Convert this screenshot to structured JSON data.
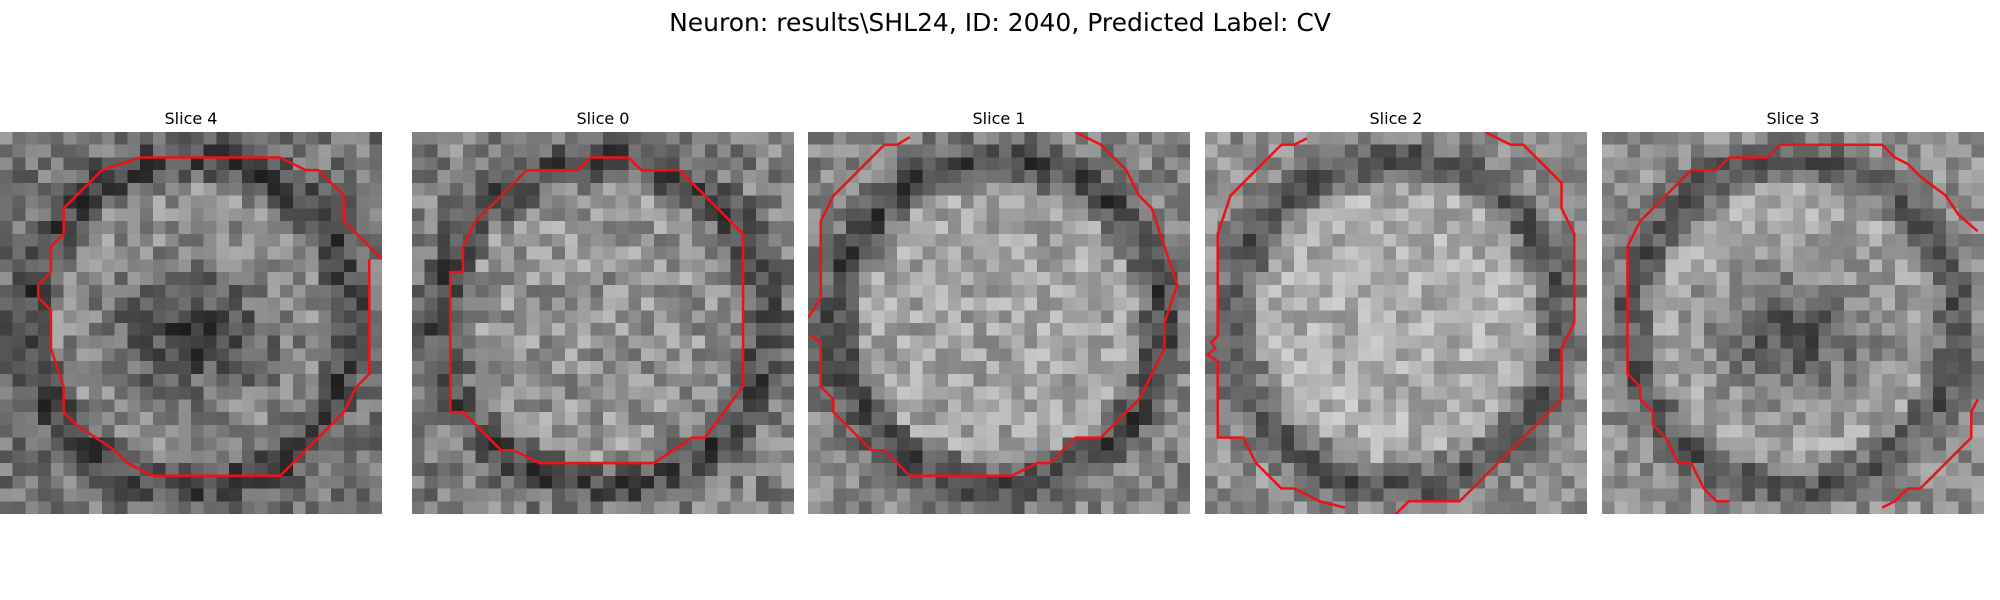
{
  "figure": {
    "title": "Neuron: results\\SHL24, ID: 2040, Predicted Label: CV"
  },
  "grid_size": 30,
  "contour_color": "#e8141a",
  "slices": [
    {
      "title": "Slice 0",
      "seed": 11,
      "base": 0.5,
      "contrast": 0.17,
      "inner_lift": 0.08,
      "ring_dark": 0.22,
      "hole_dark": 0.0,
      "contour": [
        [
          14,
          2
        ],
        [
          17,
          2
        ],
        [
          18,
          3
        ],
        [
          21,
          3
        ],
        [
          26,
          8
        ],
        [
          26,
          20
        ],
        [
          23,
          24
        ],
        [
          22,
          24
        ],
        [
          19,
          26
        ],
        [
          10,
          26
        ],
        [
          8,
          25
        ],
        [
          7,
          25
        ],
        [
          4,
          22
        ],
        [
          3,
          22
        ],
        [
          3,
          11
        ],
        [
          4,
          11
        ],
        [
          4,
          9
        ],
        [
          5,
          7
        ],
        [
          9,
          3
        ],
        [
          13,
          3
        ],
        [
          14,
          2
        ]
      ]
    },
    {
      "title": "Slice 1",
      "seed": 23,
      "base": 0.52,
      "contrast": 0.15,
      "inner_lift": 0.12,
      "ring_dark": 0.25,
      "hole_dark": 0.0,
      "contour": [
        [
          8,
          0.4
        ],
        [
          7,
          1
        ],
        [
          6,
          1
        ],
        [
          2,
          5
        ],
        [
          1,
          7
        ],
        [
          1,
          13
        ],
        [
          0.4,
          14
        ],
        [
          0,
          14.6
        ],
        null,
        [
          0.2,
          16
        ],
        [
          1,
          16.5
        ],
        [
          1,
          20
        ],
        [
          2,
          21
        ],
        [
          2,
          22
        ],
        [
          5,
          25
        ],
        [
          6,
          25
        ],
        [
          7,
          26
        ],
        [
          8,
          27
        ],
        [
          16,
          27
        ],
        [
          18,
          26
        ],
        [
          19,
          26
        ],
        [
          21,
          24
        ],
        [
          23,
          24
        ],
        [
          26,
          21
        ],
        [
          27,
          19
        ],
        [
          28,
          17
        ],
        [
          28,
          15
        ],
        [
          29,
          12
        ],
        [
          28,
          9
        ],
        [
          27,
          6
        ],
        [
          26,
          5
        ],
        [
          25,
          3
        ],
        [
          23,
          1
        ],
        [
          22,
          0.5
        ],
        [
          21,
          0
        ]
      ]
    },
    {
      "title": "Slice 2",
      "seed": 37,
      "base": 0.56,
      "contrast": 0.14,
      "inner_lift": 0.12,
      "ring_dark": 0.24,
      "hole_dark": 0.0,
      "contour": [
        [
          8,
          0.5
        ],
        [
          7,
          1
        ],
        [
          6,
          1
        ],
        [
          4,
          3
        ],
        [
          3,
          4
        ],
        [
          2,
          5
        ],
        [
          1,
          8
        ],
        [
          1,
          16
        ],
        [
          0.5,
          16.5
        ],
        [
          0.8,
          17
        ],
        [
          0.2,
          17.5
        ],
        [
          1,
          18
        ],
        [
          1,
          24
        ],
        [
          3,
          24
        ],
        [
          4,
          26
        ],
        [
          6,
          28
        ],
        [
          7,
          28
        ],
        [
          9,
          29
        ],
        [
          11,
          29.5
        ],
        null,
        [
          15,
          30
        ],
        [
          16,
          29
        ],
        [
          20,
          29
        ],
        [
          22,
          27
        ],
        [
          23,
          26
        ],
        [
          27,
          22
        ],
        [
          28,
          21
        ],
        [
          28,
          17
        ],
        [
          29,
          15
        ],
        [
          29,
          8
        ],
        [
          28,
          6
        ],
        [
          28,
          4
        ],
        [
          27,
          3
        ],
        [
          26,
          2
        ],
        [
          25,
          1
        ],
        [
          24,
          1
        ],
        [
          23,
          0.5
        ],
        [
          22,
          0
        ]
      ]
    },
    {
      "title": "Slice 3",
      "seed": 51,
      "base": 0.56,
      "contrast": 0.14,
      "inner_lift": 0.1,
      "ring_dark": 0.22,
      "hole_dark": 0.34,
      "contour": [
        [
          29.5,
          7.8
        ],
        [
          28,
          6.5
        ],
        [
          27,
          5
        ],
        [
          25,
          3.5
        ],
        [
          24,
          2.5
        ],
        [
          23,
          2
        ],
        [
          22,
          1
        ],
        [
          17,
          1
        ],
        [
          14,
          1
        ],
        [
          13,
          2
        ],
        [
          10,
          2
        ],
        [
          9,
          3
        ],
        [
          7,
          3
        ],
        [
          6,
          4
        ],
        [
          4,
          6
        ],
        [
          3,
          7
        ],
        [
          2,
          9
        ],
        [
          2,
          17
        ],
        [
          2,
          19
        ],
        [
          3,
          20
        ],
        [
          3,
          21
        ],
        [
          4,
          22
        ],
        [
          4,
          23
        ],
        [
          5,
          24
        ],
        [
          6,
          26
        ],
        [
          7,
          26
        ],
        [
          8,
          28
        ],
        [
          9,
          29
        ],
        [
          10,
          29
        ],
        null,
        [
          22,
          29.5
        ],
        [
          23,
          29
        ],
        [
          24,
          28
        ],
        [
          25,
          28
        ],
        [
          26,
          27
        ],
        [
          27,
          26
        ],
        [
          28,
          25
        ],
        [
          29,
          24
        ],
        [
          29,
          22
        ],
        [
          29.5,
          21
        ]
      ]
    },
    {
      "title": "Slice 4",
      "seed": 67,
      "base": 0.46,
      "contrast": 0.16,
      "inner_lift": 0.1,
      "ring_dark": 0.2,
      "hole_dark": 0.3,
      "contour": [
        [
          8,
          3
        ],
        [
          11,
          2
        ],
        [
          22,
          2
        ],
        [
          24,
          3
        ],
        [
          25,
          3
        ],
        [
          26,
          4
        ],
        [
          27,
          5
        ],
        [
          27,
          7
        ],
        [
          28,
          8
        ],
        [
          29,
          9
        ],
        [
          30,
          10
        ],
        null,
        [
          29,
          10
        ],
        [
          29,
          19
        ],
        [
          28,
          20
        ],
        [
          27,
          22
        ],
        [
          26,
          23
        ],
        [
          24,
          25
        ],
        [
          22,
          27
        ],
        [
          20,
          27
        ],
        [
          12,
          27
        ],
        [
          10,
          26
        ],
        [
          9,
          25
        ],
        [
          6,
          23
        ],
        [
          5,
          22
        ],
        [
          5,
          20
        ],
        [
          4,
          17
        ],
        [
          4,
          14
        ],
        [
          3,
          13
        ],
        [
          3,
          12
        ],
        [
          4,
          11
        ],
        [
          4,
          9
        ],
        [
          5,
          8
        ],
        [
          5,
          6
        ],
        [
          6,
          5
        ],
        [
          7,
          4
        ],
        [
          8,
          3
        ]
      ]
    }
  ]
}
